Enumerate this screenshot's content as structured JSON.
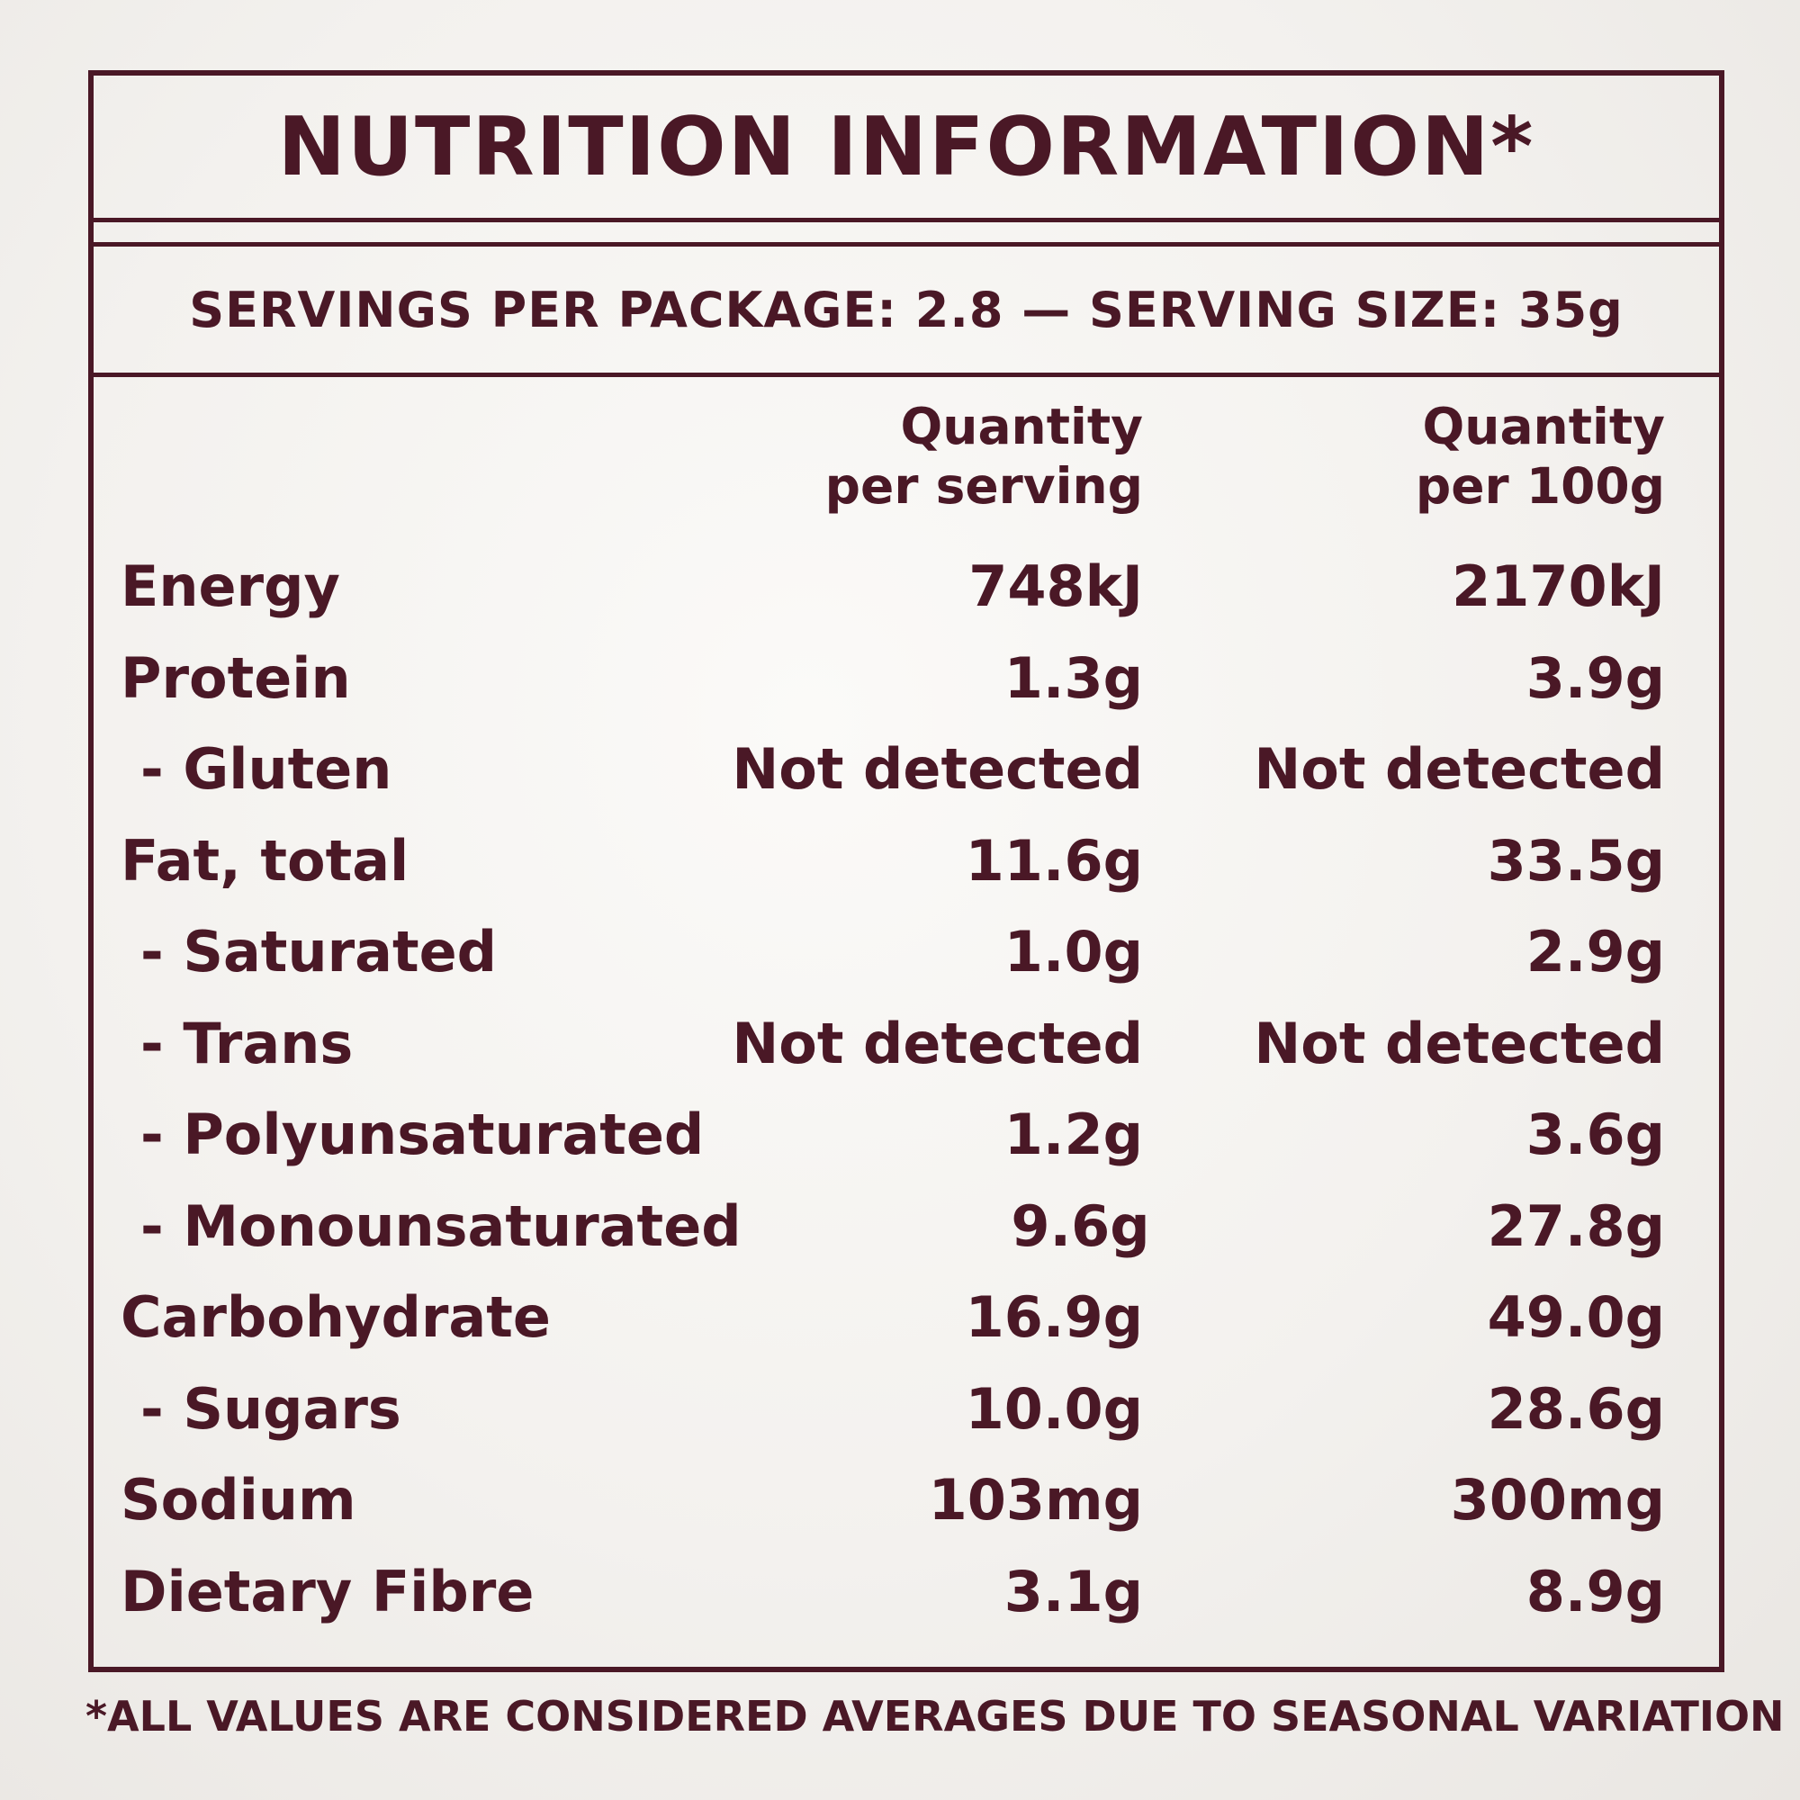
{
  "title": "NUTRITION INFORMATION*",
  "serving_info": "SERVINGS PER PACKAGE: 2.8 — SERVING SIZE: 35g",
  "columns": {
    "per_serving": [
      "Quantity",
      "per serving"
    ],
    "per_100g": [
      "Quantity",
      "per 100g"
    ]
  },
  "rows": [
    {
      "name": "Energy",
      "per_serving": "748kJ",
      "per_100g": "2170kJ",
      "sub": false
    },
    {
      "name": "Protein",
      "per_serving": "1.3g",
      "per_100g": "3.9g",
      "sub": false
    },
    {
      "name": "- Gluten",
      "per_serving": "Not detected",
      "per_100g": "Not detected",
      "sub": true
    },
    {
      "name": "Fat, total",
      "per_serving": "11.6g",
      "per_100g": "33.5g",
      "sub": false
    },
    {
      "name": "- Saturated",
      "per_serving": "1.0g",
      "per_100g": "2.9g",
      "sub": true
    },
    {
      "name": "- Trans",
      "per_serving": "Not detected",
      "per_100g": "Not detected",
      "sub": true
    },
    {
      "name": "- Polyunsaturated",
      "per_serving": "1.2g",
      "per_100g": "3.6g",
      "sub": true
    },
    {
      "name": "- Monounsaturated",
      "per_serving": "9.6g",
      "per_100g": "27.8g",
      "sub": true
    },
    {
      "name": "Carbohydrate",
      "per_serving": "16.9g",
      "per_100g": "49.0g",
      "sub": false
    },
    {
      "name": "- Sugars",
      "per_serving": "10.0g",
      "per_100g": "28.6g",
      "sub": true
    },
    {
      "name": "Sodium",
      "per_serving": "103mg",
      "per_100g": "300mg",
      "sub": false
    },
    {
      "name": "Dietary Fibre",
      "per_serving": "3.1g",
      "per_100g": "8.9g",
      "sub": false
    }
  ],
  "footnote": "*ALL VALUES ARE CONSIDERED AVERAGES DUE TO SEASONAL VARIATION",
  "colors": {
    "ink": "#4a1826",
    "background": "#f5f3f0"
  }
}
